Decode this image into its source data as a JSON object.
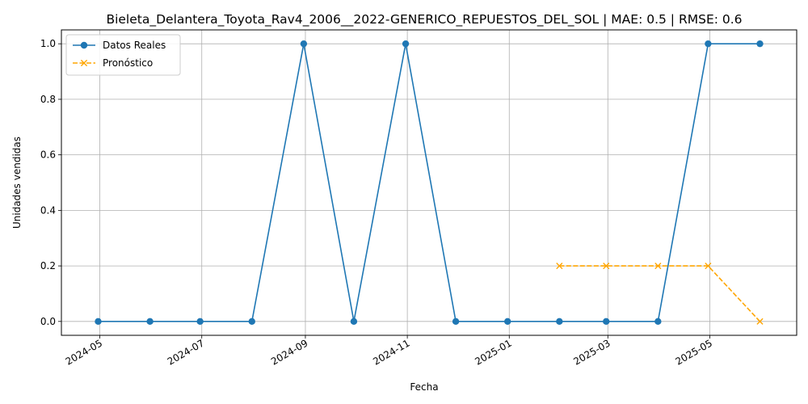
{
  "chart_data": {
    "type": "line",
    "title": "Bieleta_Delantera_Toyota_Rav4_2006__2022-GENERICO_REPUESTOS_DEL_SOL | MAE: 0.5 | RMSE: 0.6",
    "xlabel": "Fecha",
    "ylabel": "Unidades vendidas",
    "ylim": [
      -0.05,
      1.05
    ],
    "xlim": [
      "2024-04-08",
      "2025-06-22"
    ],
    "grid": true,
    "legend_position": "top-left",
    "x_ticks": [
      "2024-05",
      "2024-07",
      "2024-09",
      "2024-11",
      "2025-01",
      "2025-03",
      "2025-05"
    ],
    "y_ticks": [
      "0.0",
      "0.2",
      "0.4",
      "0.6",
      "0.8",
      "1.0"
    ],
    "series": [
      {
        "name": "Datos Reales",
        "color": "#1f77b4",
        "style": "solid",
        "marker": "circle",
        "x": [
          "2024-04-30",
          "2024-05-31",
          "2024-06-30",
          "2024-07-31",
          "2024-08-31",
          "2024-09-30",
          "2024-10-31",
          "2024-11-30",
          "2024-12-31",
          "2025-01-31",
          "2025-02-28",
          "2025-03-31",
          "2025-04-30",
          "2025-05-31"
        ],
        "y": [
          0,
          0,
          0,
          0,
          1,
          0,
          1,
          0,
          0,
          0,
          0,
          0,
          1,
          1
        ]
      },
      {
        "name": "Pronóstico",
        "color": "#ffa500",
        "style": "dashed",
        "marker": "x",
        "x": [
          "2025-01-31",
          "2025-02-28",
          "2025-03-31",
          "2025-04-30",
          "2025-05-31"
        ],
        "y": [
          0.2,
          0.2,
          0.2,
          0.2,
          0
        ]
      }
    ]
  }
}
